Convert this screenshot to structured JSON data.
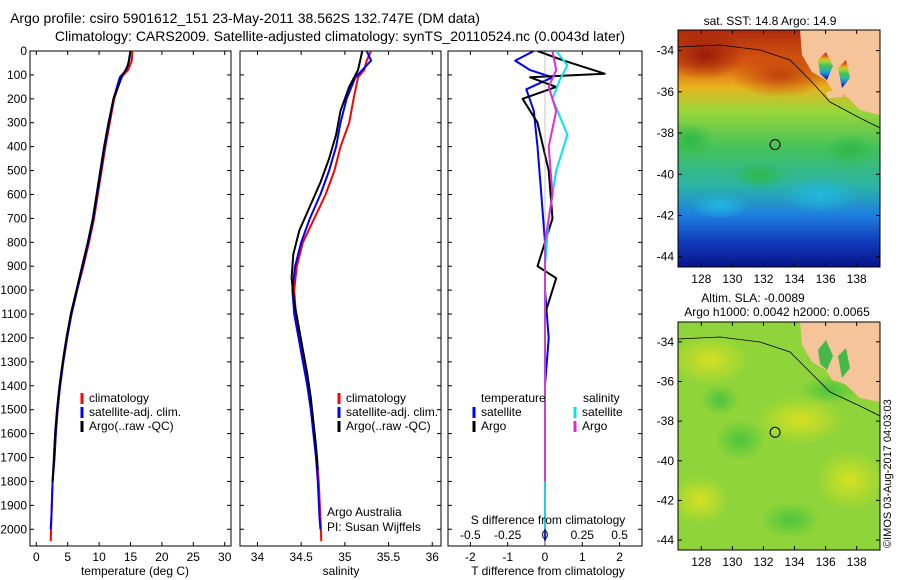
{
  "header": {
    "title_line1": "Argo profile: csiro 5901612_151 23-May-2011 38.562S 132.747E (DM data)",
    "title_line2": "Climatology: CARS2009. Satellite-adjusted climatology: synTS_20110524.nc (0.0043d later)"
  },
  "colors": {
    "climatology": "#ff0000",
    "satellite": "#0000ff",
    "argo": "#000000",
    "sal_satellite": "#00e5ee",
    "sal_argo": "#e02bdc"
  },
  "labels": {
    "argo_australia": "Argo Australia",
    "pi": "PI: Susan Wijffels",
    "imos_stamp": "©IMOS 03-Aug-2017 04:03:03"
  },
  "chart_data": [
    {
      "type": "line",
      "id": "temperature-profile",
      "xlabel": "temperature (deg C)",
      "ylabel": "",
      "xlim": [
        -1,
        31
      ],
      "ylim": [
        2070,
        0
      ],
      "xticks": [
        0,
        5,
        10,
        15,
        20,
        25,
        30
      ],
      "yticks": [
        0,
        100,
        200,
        300,
        400,
        500,
        600,
        700,
        800,
        900,
        1000,
        1100,
        1200,
        1300,
        1400,
        1500,
        1600,
        1700,
        1800,
        1900,
        2000
      ],
      "legend": [
        {
          "label": "climatology",
          "color": "#ff0000"
        },
        {
          "label": "satellite-adj. clim.",
          "color": "#0000ff"
        },
        {
          "label": "Argo(..raw -QC)",
          "color": "#000000"
        }
      ],
      "series": [
        {
          "name": "climatology",
          "color": "#ff0000",
          "x": [
            15.3,
            15.2,
            14.6,
            13.5,
            12.4,
            11.7,
            11.0,
            10.4,
            9.8,
            9.2,
            8.4,
            7.5,
            6.5,
            5.6,
            4.9,
            4.3,
            3.8,
            3.4,
            3.1,
            2.9,
            2.6,
            2.4,
            2.3
          ],
          "y": [
            0,
            40,
            80,
            110,
            200,
            300,
            400,
            500,
            600,
            700,
            800,
            900,
            1000,
            1100,
            1200,
            1300,
            1400,
            1500,
            1600,
            1700,
            1800,
            1950,
            2050
          ]
        },
        {
          "name": "satellite-adj. clim.",
          "color": "#0000ff",
          "x": [
            15.0,
            14.8,
            14.3,
            13.3,
            12.3,
            11.6,
            10.9,
            10.3,
            9.7,
            9.1,
            8.3,
            7.4,
            6.5,
            5.6,
            4.9,
            4.3,
            3.8,
            3.4,
            3.1,
            2.9,
            2.6,
            2.4,
            2.3
          ],
          "y": [
            0,
            40,
            80,
            110,
            200,
            300,
            400,
            500,
            600,
            700,
            800,
            900,
            1000,
            1100,
            1200,
            1300,
            1400,
            1500,
            1600,
            1700,
            1800,
            1950,
            2000
          ]
        },
        {
          "name": "Argo(..raw -QC)",
          "color": "#000000",
          "x": [
            15.0,
            14.6,
            13.6,
            12.3,
            11.5,
            10.8,
            10.2,
            9.6,
            9.0,
            8.2,
            7.3,
            6.4,
            5.5,
            4.8,
            4.2,
            3.7,
            3.3,
            3.0,
            2.8,
            2.6
          ],
          "y": [
            0,
            60,
            110,
            200,
            300,
            400,
            500,
            600,
            700,
            800,
            900,
            1000,
            1100,
            1200,
            1300,
            1400,
            1500,
            1600,
            1700,
            1800
          ]
        }
      ]
    },
    {
      "type": "line",
      "id": "salinity-profile",
      "xlabel": "salinity",
      "ylabel": "",
      "xlim": [
        33.8,
        36.1
      ],
      "ylim": [
        2070,
        0
      ],
      "xticks": [
        34,
        34.5,
        35,
        35.5,
        36
      ],
      "legend": [
        {
          "label": "climatology",
          "color": "#ff0000"
        },
        {
          "label": "satellite-adj. clim.",
          "color": "#0000ff"
        },
        {
          "label": "Argo(..raw -QC)",
          "color": "#000000"
        }
      ],
      "series": [
        {
          "name": "climatology",
          "color": "#ff0000",
          "x": [
            35.3,
            35.25,
            35.22,
            35.15,
            35.1,
            35.05,
            34.95,
            34.88,
            34.78,
            34.65,
            34.52,
            34.45,
            34.42,
            34.44,
            34.48,
            34.53,
            34.58,
            34.62,
            34.65,
            34.68,
            34.7,
            34.72,
            34.73
          ],
          "y": [
            0,
            40,
            80,
            110,
            200,
            300,
            400,
            500,
            600,
            700,
            800,
            900,
            1000,
            1100,
            1200,
            1300,
            1400,
            1500,
            1600,
            1700,
            1800,
            1950,
            2050
          ]
        },
        {
          "name": "satellite-adj. clim.",
          "color": "#0000ff",
          "x": [
            35.25,
            35.3,
            35.2,
            35.12,
            35.02,
            34.95,
            34.9,
            34.82,
            34.72,
            34.6,
            34.5,
            34.43,
            34.4,
            34.42,
            34.47,
            34.52,
            34.57,
            34.61,
            34.64,
            34.67,
            34.69,
            34.71,
            34.72
          ],
          "y": [
            0,
            40,
            80,
            110,
            200,
            300,
            400,
            500,
            600,
            700,
            800,
            900,
            1000,
            1100,
            1200,
            1300,
            1400,
            1500,
            1600,
            1700,
            1800,
            1950,
            2000
          ]
        },
        {
          "name": "Argo(..raw -QC)",
          "color": "#000000",
          "x": [
            35.2,
            35.15,
            35.05,
            34.95,
            34.9,
            34.82,
            34.72,
            34.6,
            34.48,
            34.41,
            34.39,
            34.42,
            34.47,
            34.52,
            34.57,
            34.61,
            34.64,
            34.67,
            34.69
          ],
          "y": [
            0,
            80,
            150,
            250,
            350,
            450,
            550,
            650,
            750,
            850,
            950,
            1050,
            1150,
            1250,
            1350,
            1450,
            1550,
            1650,
            1750
          ]
        }
      ]
    },
    {
      "type": "line",
      "id": "difference-profile",
      "xlabel": "T difference from climatology",
      "xlabel_top": "S difference from climatology",
      "xlim": [
        -2.6,
        2.6
      ],
      "ylim": [
        2070,
        0
      ],
      "xticks": [
        -2,
        -1,
        0,
        1,
        2
      ],
      "top_xticks_labels": [
        "-0.5",
        "-0.25",
        "0",
        "0.25",
        "0.5"
      ],
      "legend": {
        "temperature_heading": "temperature",
        "salinity_heading": "salinity",
        "entries": [
          {
            "label": "satellite",
            "color": "#0000ff",
            "group": "temperature"
          },
          {
            "label": "Argo",
            "color": "#000000",
            "group": "temperature"
          },
          {
            "label": "satellite",
            "color": "#00e5ee",
            "group": "salinity"
          },
          {
            "label": "Argo",
            "color": "#e02bdc",
            "group": "salinity"
          }
        ]
      },
      "series": [
        {
          "name": "T satellite",
          "color": "#0000ff",
          "x": [
            -0.3,
            -0.8,
            -0.4,
            0.2,
            -0.5,
            -0.3,
            -0.2,
            -0.1,
            0.0,
            0.0,
            0.1,
            0.0,
            0.0,
            0.0,
            0.0,
            0.0
          ],
          "y": [
            0,
            40,
            80,
            110,
            160,
            250,
            400,
            600,
            800,
            1000,
            1200,
            1400,
            1600,
            1800,
            2000,
            2050
          ]
        },
        {
          "name": "T Argo",
          "color": "#000000",
          "x": [
            -0.2,
            0.5,
            1.6,
            -0.4,
            0.3,
            -0.6,
            -0.2,
            0.1,
            0.2,
            -0.2,
            0.3,
            0.0,
            0.0,
            0.0
          ],
          "y": [
            0,
            40,
            95,
            110,
            150,
            200,
            300,
            500,
            700,
            900,
            950,
            1100,
            1400,
            1800
          ]
        },
        {
          "name": "S satellite",
          "color": "#00e5ee",
          "x": [
            0.3,
            0.6,
            0.4,
            0.2,
            0.6,
            0.3,
            0.1,
            0.0,
            0.0,
            0.0,
            0.0,
            0.0
          ],
          "y": [
            0,
            60,
            120,
            200,
            350,
            500,
            700,
            900,
            1200,
            1500,
            1800,
            2000
          ]
        },
        {
          "name": "S Argo",
          "color": "#e02bdc",
          "x": [
            0.2,
            0.3,
            0.1,
            0.3,
            0.1,
            0.2,
            0.0,
            0.0,
            0.0,
            0.0,
            0.0
          ],
          "y": [
            0,
            80,
            150,
            250,
            400,
            600,
            800,
            1000,
            1300,
            1600,
            1800
          ]
        }
      ]
    },
    {
      "type": "heatmap",
      "id": "sst-map",
      "title": "sat. SST: 14.8 Argo: 14.9",
      "xlim": [
        126.5,
        139.5
      ],
      "ylim": [
        -44.5,
        -33
      ],
      "xticks": [
        128,
        130,
        132,
        134,
        136,
        138
      ],
      "yticks": [
        -34,
        -36,
        -38,
        -40,
        -42,
        -44
      ],
      "argo_position": {
        "lon": 132.747,
        "lat": -38.562
      }
    },
    {
      "type": "heatmap",
      "id": "sla-map",
      "title_line1": "Altim. SLA: -0.0089",
      "title_line2": "Argo h1000: 0.0042 h2000: 0.0065",
      "xlim": [
        126.5,
        139.5
      ],
      "ylim": [
        -44.5,
        -33
      ],
      "xticks": [
        128,
        130,
        132,
        134,
        136,
        138
      ],
      "yticks": [
        -34,
        -36,
        -38,
        -40,
        -42,
        -44
      ],
      "argo_position": {
        "lon": 132.747,
        "lat": -38.562
      }
    }
  ]
}
